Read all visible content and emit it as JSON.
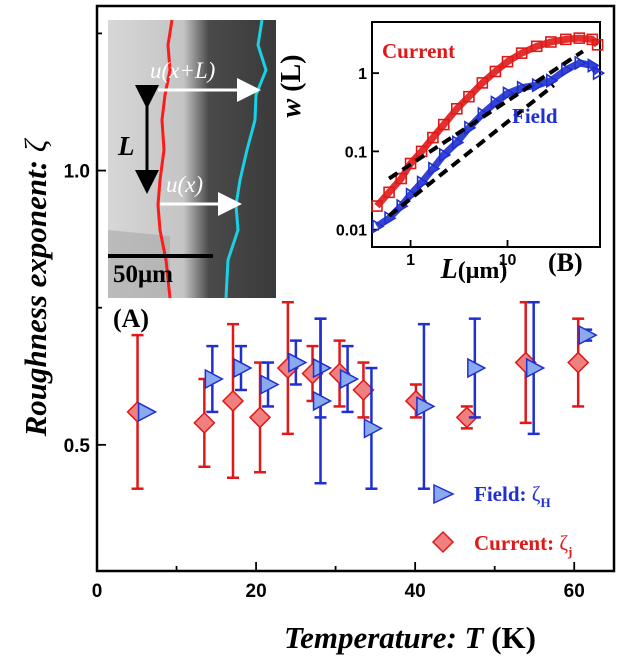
{
  "chart_data": [
    {
      "type": "scatter",
      "title": "",
      "xlabel_prefix": "Temperature: ",
      "xlabel_symbol": "T",
      "xlabel_unit": " (K)",
      "ylabel_prefix": "Roughness exponent: ",
      "ylabel_symbol": "ζ",
      "xlim": [
        0,
        65
      ],
      "ylim": [
        0.27,
        1.3
      ],
      "xticks": [
        "0",
        "20",
        "40",
        "60"
      ],
      "xtick_values": [
        0,
        20,
        40,
        60
      ],
      "yticks": [
        "0.5",
        "1.0"
      ],
      "ytick_values": [
        0.5,
        1.0
      ],
      "series": [
        {
          "name_text": "Field: ",
          "name_symbol": "ζ",
          "name_sub": "H",
          "marker": "triangle-right",
          "color": "#1f2fd0",
          "fill": "#8aaaf0",
          "points": [
            {
              "x": 5.6,
              "y": 0.56,
              "yerr": 0.0
            },
            {
              "x": 14.0,
              "y": 0.62,
              "yerr": 0.06
            },
            {
              "x": 17.6,
              "y": 0.64,
              "yerr": 0.04
            },
            {
              "x": 21.0,
              "y": 0.61,
              "yerr": 0.04
            },
            {
              "x": 24.5,
              "y": 0.65,
              "yerr": 0.04
            },
            {
              "x": 27.6,
              "y": 0.64,
              "yerr": 0.09
            },
            {
              "x": 27.6,
              "y": 0.58,
              "yerr": 0.15
            },
            {
              "x": 31.0,
              "y": 0.62,
              "yerr": 0.06
            },
            {
              "x": 34.0,
              "y": 0.53,
              "yerr": 0.11
            },
            {
              "x": 40.6,
              "y": 0.57,
              "yerr": 0.15
            },
            {
              "x": 47.0,
              "y": 0.64,
              "yerr": 0.09
            },
            {
              "x": 54.4,
              "y": 0.64,
              "yerr": 0.12
            },
            {
              "x": 61.0,
              "y": 0.7,
              "yerr": 0.01
            }
          ]
        },
        {
          "name_text": "Current: ",
          "name_symbol": "ζ",
          "name_sub": "j",
          "marker": "diamond",
          "color": "#e01818",
          "fill": "#f08080",
          "points": [
            {
              "x": 5.6,
              "y": 0.56,
              "yerr": 0.14
            },
            {
              "x": 14.0,
              "y": 0.54,
              "yerr": 0.08
            },
            {
              "x": 17.6,
              "y": 0.58,
              "yerr": 0.14
            },
            {
              "x": 21.0,
              "y": 0.55,
              "yerr": 0.1
            },
            {
              "x": 24.5,
              "y": 0.64,
              "yerr": 0.12
            },
            {
              "x": 27.6,
              "y": 0.63,
              "yerr": 0.05
            },
            {
              "x": 31.0,
              "y": 0.63,
              "yerr": 0.06
            },
            {
              "x": 34.0,
              "y": 0.6,
              "yerr": 0.05
            },
            {
              "x": 40.6,
              "y": 0.58,
              "yerr": 0.03
            },
            {
              "x": 47.0,
              "y": 0.55,
              "yerr": 0.02
            },
            {
              "x": 54.4,
              "y": 0.65,
              "yerr": 0.11
            },
            {
              "x": 61.0,
              "y": 0.65,
              "yerr": 0.08
            }
          ]
        }
      ],
      "legend_position": "bottom-right"
    },
    {
      "type": "scatter",
      "ylabel_symbol": "w",
      "ylabel_arg": " (L)",
      "xlabel_symbol": "L",
      "xlabel_unit": "(μm)",
      "log_x": true,
      "log_y": true,
      "xlim": [
        0.4,
        90
      ],
      "ylim": [
        0.006,
        4.5
      ],
      "xticks": [
        "1",
        "10"
      ],
      "xtick_values": [
        1,
        10
      ],
      "yticks": [
        "0.01",
        "0.1",
        "1"
      ],
      "ytick_values": [
        0.01,
        0.1,
        1
      ],
      "series": [
        {
          "name": "Current",
          "marker": "square-open",
          "color": "#e01818",
          "x": [
            0.45,
            0.6,
            0.8,
            1.0,
            1.3,
            1.7,
            2.2,
            3,
            4,
            5.5,
            7.5,
            10,
            14,
            20,
            28,
            40,
            55,
            75,
            85
          ],
          "y": [
            0.02,
            0.03,
            0.045,
            0.07,
            0.1,
            0.15,
            0.22,
            0.35,
            0.5,
            0.75,
            1.05,
            1.4,
            1.8,
            2.2,
            2.5,
            2.7,
            2.8,
            2.7,
            2.3
          ]
        },
        {
          "name": "Field",
          "marker": "triangle-open",
          "color": "#1f2fd0",
          "x": [
            0.45,
            0.6,
            0.8,
            1.0,
            1.3,
            1.7,
            2.2,
            3,
            4,
            5.5,
            7.5,
            10,
            14,
            20,
            28,
            40,
            55,
            75,
            85
          ],
          "y": [
            0.011,
            0.014,
            0.02,
            0.028,
            0.04,
            0.06,
            0.09,
            0.13,
            0.2,
            0.3,
            0.42,
            0.55,
            0.65,
            0.7,
            0.8,
            1.1,
            1.35,
            1.25,
            1.0
          ]
        },
        {
          "name": "",
          "marker": "dashed-fit",
          "color": "#000000",
          "x": [
            0.6,
            60
          ],
          "y": [
            0.045,
            1.9
          ]
        },
        {
          "name": "",
          "marker": "dashed-fit",
          "color": "#000000",
          "x": [
            0.6,
            30
          ],
          "y": [
            0.015,
            0.7
          ]
        }
      ]
    }
  ],
  "panels": {
    "a_label": "(A)",
    "b_label": "(B)",
    "photo": {
      "scalebar_label": "50μm",
      "length_label": "L",
      "upper_arrow_label": "u(x+L)",
      "lower_arrow_label": "u(x)"
    }
  }
}
